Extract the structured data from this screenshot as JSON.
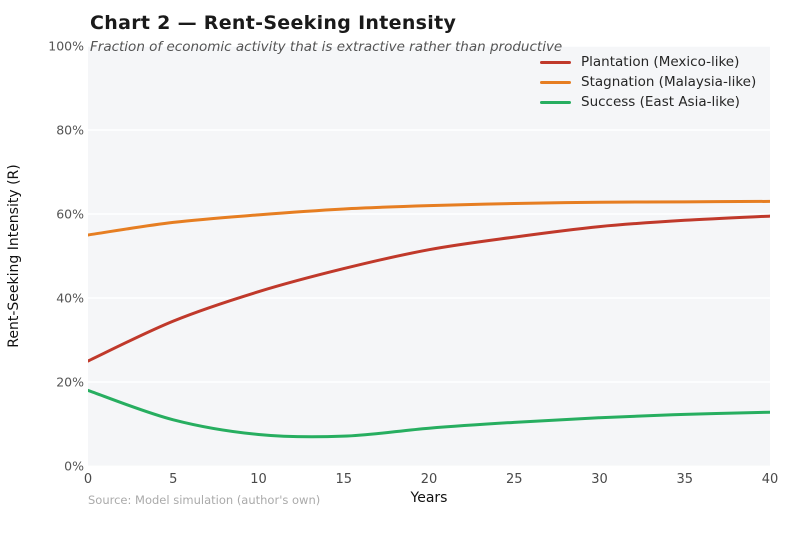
{
  "header": {
    "title": "Chart 2 — Rent-Seeking Intensity",
    "subtitle": "Fraction of economic activity that is extractive rather than productive"
  },
  "source_note": "Source: Model simulation (author's own)",
  "chart_data": {
    "type": "line",
    "title": "Chart 2 — Rent-Seeking Intensity",
    "subtitle": "Fraction of economic activity that is extractive rather than productive",
    "xlabel": "Years",
    "ylabel": "Rent-Seeking Intensity (R)",
    "xlim": [
      0,
      40
    ],
    "ylim": [
      0,
      100
    ],
    "x": [
      0,
      5,
      10,
      15,
      20,
      25,
      30,
      35,
      40
    ],
    "x_tick_labels": [
      "0",
      "5",
      "10",
      "15",
      "20",
      "25",
      "30",
      "35",
      "40"
    ],
    "y_tick_values": [
      0,
      20,
      40,
      60,
      80,
      100
    ],
    "y_tick_labels": [
      "0%",
      "20%",
      "40%",
      "60%",
      "80%",
      "100%"
    ],
    "grid": "horizontal-only",
    "legend_position": "top-right",
    "series": [
      {
        "name": "Plantation (Mexico-like)",
        "color": "#c0392b",
        "values": [
          25,
          34.5,
          41.5,
          47,
          51.5,
          54.5,
          57,
          58.5,
          59.5
        ]
      },
      {
        "name": "Stagnation (Malaysia-like)",
        "color": "#e67e22",
        "values": [
          55,
          58,
          59.8,
          61.2,
          62,
          62.5,
          62.8,
          62.9,
          63
        ]
      },
      {
        "name": "Success (East Asia-like)",
        "color": "#27ae60",
        "values": [
          18,
          11,
          7.5,
          7.1,
          9,
          10.4,
          11.5,
          12.3,
          12.8
        ]
      }
    ]
  },
  "colors": {
    "plot_background": "#f5f6f8",
    "gridline": "#ffffff",
    "title_text": "#1a1a1a",
    "subtitle_text": "#555555",
    "tick_text": "#555555",
    "axis_label_text": "#111111",
    "source_text": "#aaaaaa"
  }
}
